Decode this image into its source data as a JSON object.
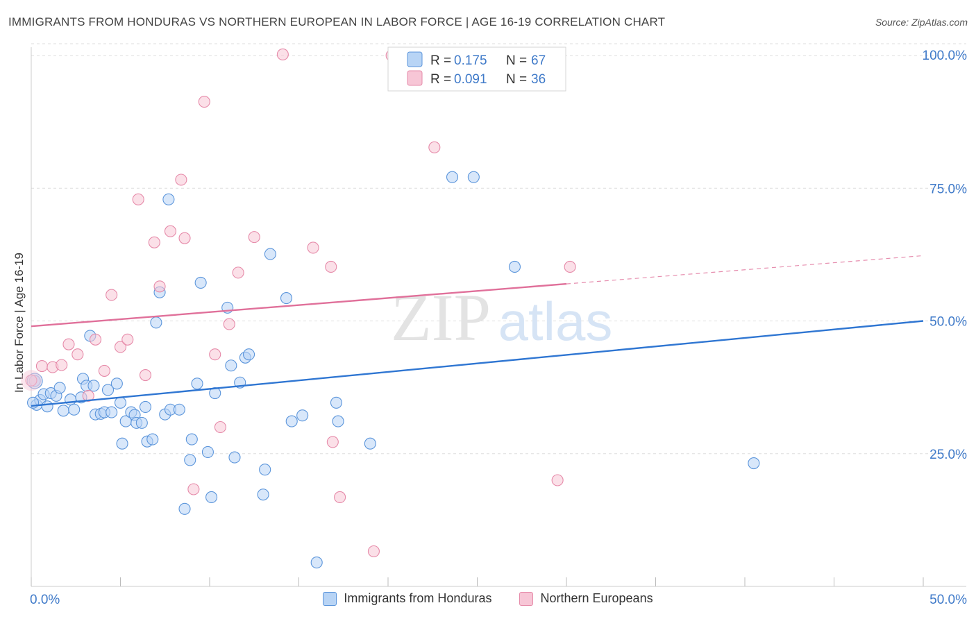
{
  "header": {
    "title": "IMMIGRANTS FROM HONDURAS VS NORTHERN EUROPEAN IN LABOR FORCE | AGE 16-19 CORRELATION CHART",
    "source": "Source: ZipAtlas.com"
  },
  "watermark": {
    "zip": "ZIP",
    "atlas": "atlas"
  },
  "colors": {
    "blue_fill": "#b8d4f5",
    "blue_stroke": "#5b95db",
    "blue_line": "#2f76d2",
    "pink_fill": "#f7c6d6",
    "pink_stroke": "#e68aa9",
    "pink_line": "#e0709a",
    "axis_text": "#3f7ac9",
    "grid": "#dddddd"
  },
  "chart_data": {
    "type": "scatter",
    "title": "IMMIGRANTS FROM HONDURAS VS NORTHERN EUROPEAN IN LABOR FORCE | AGE 16-19 CORRELATION CHART",
    "xlabel": "",
    "ylabel": "In Labor Force | Age 16-19",
    "xlim": [
      0,
      50
    ],
    "ylim": [
      0,
      105
    ],
    "x_tick_labels": [
      "0.0%",
      "50.0%"
    ],
    "y_tick_labels": [
      "25.0%",
      "50.0%",
      "75.0%",
      "100.0%"
    ],
    "y_tick_values": [
      25,
      50,
      75,
      100
    ],
    "grid": true,
    "legend_position": "top-center",
    "legend": [
      {
        "r_label": "R =",
        "r_value": "0.175",
        "n_label": "N =",
        "n_value": "67"
      },
      {
        "r_label": "R =",
        "r_value": "0.091",
        "n_label": "N =",
        "n_value": "36"
      }
    ],
    "series": [
      {
        "name": "Immigrants from Honduras",
        "color": "blue",
        "trend": {
          "x": [
            0,
            50
          ],
          "y": [
            34.0,
            50.0
          ],
          "dashed_from": null
        },
        "points": [
          [
            0.2,
            38.7
          ],
          [
            0.3,
            34.2
          ],
          [
            0.5,
            35.1
          ],
          [
            0.7,
            36.2
          ],
          [
            0.9,
            33.9
          ],
          [
            1.1,
            36.4
          ],
          [
            1.4,
            35.9
          ],
          [
            1.6,
            37.4
          ],
          [
            1.8,
            33.1
          ],
          [
            2.2,
            35.2
          ],
          [
            2.4,
            33.3
          ],
          [
            2.8,
            35.6
          ],
          [
            2.9,
            39.1
          ],
          [
            3.1,
            37.8
          ],
          [
            3.3,
            47.2
          ],
          [
            3.5,
            37.8
          ],
          [
            3.6,
            32.4
          ],
          [
            3.9,
            32.5
          ],
          [
            4.1,
            32.8
          ],
          [
            4.3,
            37.0
          ],
          [
            4.5,
            32.8
          ],
          [
            4.8,
            38.2
          ],
          [
            5.0,
            34.6
          ],
          [
            5.1,
            26.9
          ],
          [
            5.3,
            31.1
          ],
          [
            5.6,
            32.8
          ],
          [
            5.8,
            32.3
          ],
          [
            5.9,
            30.8
          ],
          [
            6.2,
            30.8
          ],
          [
            6.4,
            33.8
          ],
          [
            6.5,
            27.3
          ],
          [
            6.8,
            27.7
          ],
          [
            7.0,
            49.7
          ],
          [
            7.2,
            55.4
          ],
          [
            7.5,
            32.4
          ],
          [
            7.7,
            72.9
          ],
          [
            7.8,
            33.3
          ],
          [
            8.3,
            33.3
          ],
          [
            8.6,
            14.6
          ],
          [
            8.9,
            23.8
          ],
          [
            9.0,
            27.7
          ],
          [
            9.3,
            38.2
          ],
          [
            9.5,
            57.2
          ],
          [
            9.9,
            25.3
          ],
          [
            10.1,
            16.8
          ],
          [
            10.3,
            36.4
          ],
          [
            11.0,
            52.5
          ],
          [
            11.2,
            41.6
          ],
          [
            11.4,
            24.3
          ],
          [
            11.7,
            38.4
          ],
          [
            12.0,
            43.1
          ],
          [
            12.2,
            43.7
          ],
          [
            13.0,
            17.3
          ],
          [
            13.1,
            22.0
          ],
          [
            13.4,
            62.6
          ],
          [
            14.3,
            54.3
          ],
          [
            14.6,
            31.1
          ],
          [
            15.2,
            32.2
          ],
          [
            16.0,
            4.5
          ],
          [
            17.1,
            34.6
          ],
          [
            17.2,
            31.1
          ],
          [
            19.0,
            26.9
          ],
          [
            23.6,
            77.1
          ],
          [
            24.8,
            77.1
          ],
          [
            27.1,
            60.2
          ],
          [
            40.5,
            23.2
          ],
          [
            0.1,
            34.6
          ]
        ]
      },
      {
        "name": "Northern Europeans",
        "color": "pink",
        "trend": {
          "x": [
            0,
            50
          ],
          "y": [
            49.0,
            62.3
          ],
          "dashed_from": 30.0
        },
        "points": [
          [
            0.0,
            38.8
          ],
          [
            0.6,
            41.5
          ],
          [
            1.2,
            41.3
          ],
          [
            1.7,
            41.7
          ],
          [
            2.1,
            45.6
          ],
          [
            2.6,
            43.7
          ],
          [
            3.2,
            35.9
          ],
          [
            3.6,
            46.5
          ],
          [
            4.1,
            40.6
          ],
          [
            4.5,
            54.9
          ],
          [
            5.0,
            45.1
          ],
          [
            5.4,
            46.5
          ],
          [
            6.0,
            72.9
          ],
          [
            6.4,
            39.8
          ],
          [
            6.9,
            64.8
          ],
          [
            7.2,
            56.5
          ],
          [
            7.8,
            66.9
          ],
          [
            8.4,
            76.6
          ],
          [
            8.6,
            65.6
          ],
          [
            9.1,
            18.3
          ],
          [
            9.7,
            91.3
          ],
          [
            10.3,
            43.7
          ],
          [
            10.6,
            30.0
          ],
          [
            11.1,
            49.4
          ],
          [
            11.6,
            59.1
          ],
          [
            12.5,
            65.8
          ],
          [
            14.1,
            100.2
          ],
          [
            15.8,
            63.8
          ],
          [
            16.8,
            60.2
          ],
          [
            16.9,
            27.2
          ],
          [
            17.3,
            16.8
          ],
          [
            19.2,
            6.6
          ],
          [
            20.2,
            100.0
          ],
          [
            22.6,
            82.7
          ],
          [
            29.5,
            20.0
          ],
          [
            30.2,
            60.2
          ]
        ]
      }
    ]
  }
}
